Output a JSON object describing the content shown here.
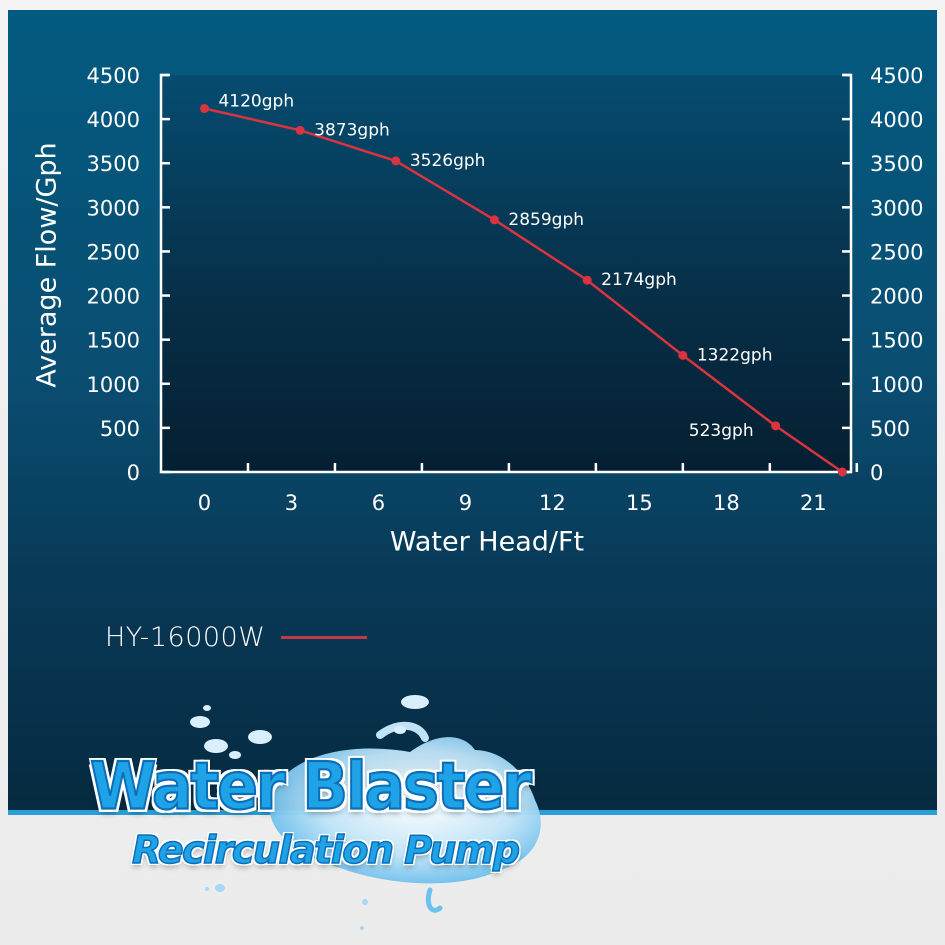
{
  "chart_data": {
    "type": "line",
    "title": "",
    "xlabel": "Water Head/Ft",
    "ylabel": "Average Flow/Gph",
    "x_ticks": [
      0,
      3,
      6,
      9,
      12,
      15,
      18,
      21
    ],
    "y_ticks": [
      0,
      500,
      1000,
      1500,
      2000,
      2500,
      3000,
      3500,
      4000,
      4500
    ],
    "xlim": [
      -1.5,
      22.3
    ],
    "ylim": [
      0,
      4500
    ],
    "grid": false,
    "legend_position": "below-left",
    "right_axis_mirror": true,
    "series": [
      {
        "name": "HY-16000W",
        "color": "#d9343f",
        "x": [
          0,
          3.3,
          6.6,
          10,
          13.2,
          16.5,
          19.7,
          22
        ],
        "values": [
          4120,
          3873,
          3526,
          2859,
          2174,
          1322,
          523,
          0
        ],
        "labels": [
          "4120gph",
          "3873gph",
          "3526gph",
          "2859gph",
          "2174gph",
          "1322gph",
          "523gph",
          ""
        ]
      }
    ]
  },
  "axes": {
    "y_title": "Average Flow/Gph",
    "x_title": "Water Head/Ft"
  },
  "legend": {
    "label": "HY-16000W",
    "color": "#c0394a"
  },
  "logo": {
    "line1": "Water Blaster",
    "line2": "Recirculation Pump"
  },
  "colors": {
    "panel_top": "#035a80",
    "panel_bottom": "#062a40",
    "accent_border": "#2a9ed6",
    "line": "#d9343f",
    "text": "#ffffff"
  }
}
